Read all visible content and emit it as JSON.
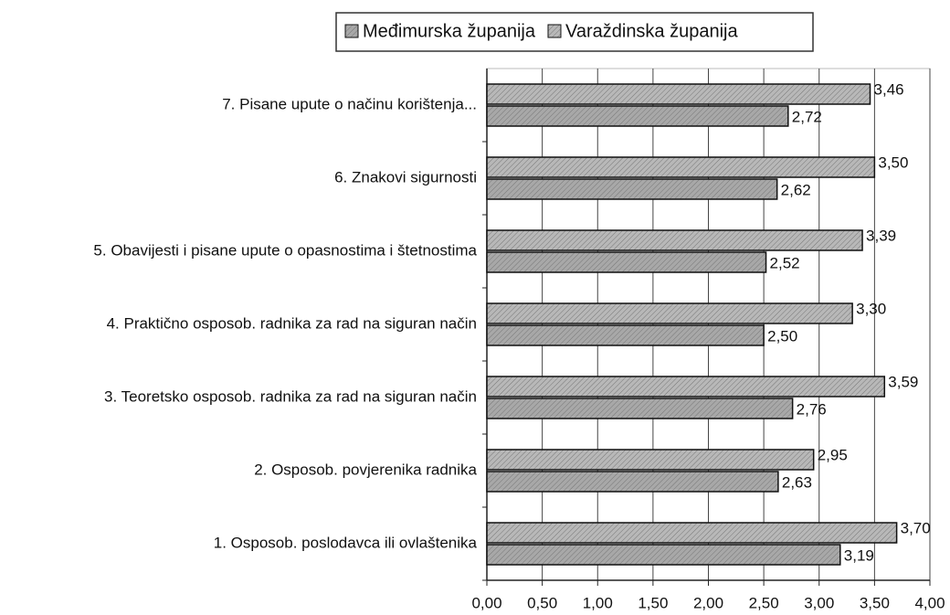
{
  "chart_data": {
    "type": "barh",
    "categories": [
      "1. Osposob. poslodavca ili ovlaštenika",
      "2. Osposob. povjerenika radnika",
      "3. Teoretsko osposob. radnika za rad  na siguran način",
      "4. Praktično osposob. radnika za rad na siguran način",
      "5. Obavijesti i pisane upute o opasnostima i štetnostima",
      "6. Znakovi sigurnosti",
      "7. Pisane upute o načinu korištenja..."
    ],
    "series": [
      {
        "name": "Međimurska županija",
        "color": "#a8a8a8",
        "values": [
          3.19,
          2.63,
          2.76,
          2.5,
          2.52,
          2.62,
          2.72
        ],
        "value_labels": [
          "3,19",
          "2,63",
          "2,76",
          "2,50",
          "2,52",
          "2,62",
          "2,72"
        ]
      },
      {
        "name": "Varaždinska županija",
        "color": "#b8b8b8",
        "values": [
          3.7,
          2.95,
          3.59,
          3.3,
          3.39,
          3.5,
          3.46
        ],
        "value_labels": [
          "3,70",
          "2,95",
          "3,59",
          "3,30",
          "3,39",
          "3,50",
          "3,46"
        ]
      }
    ],
    "xlim": [
      0,
      4
    ],
    "xticks": [
      {
        "value": 0,
        "label": "0,00"
      },
      {
        "value": 0.5,
        "label": "0,50"
      },
      {
        "value": 1,
        "label": "1,00"
      },
      {
        "value": 1.5,
        "label": "1,50"
      },
      {
        "value": 2,
        "label": "2,00"
      },
      {
        "value": 2.5,
        "label": "2,50"
      },
      {
        "value": 3,
        "label": "3,00"
      },
      {
        "value": 3.5,
        "label": "3,50"
      },
      {
        "value": 4,
        "label": "4,00"
      }
    ],
    "grid": true,
    "legend": "top"
  }
}
